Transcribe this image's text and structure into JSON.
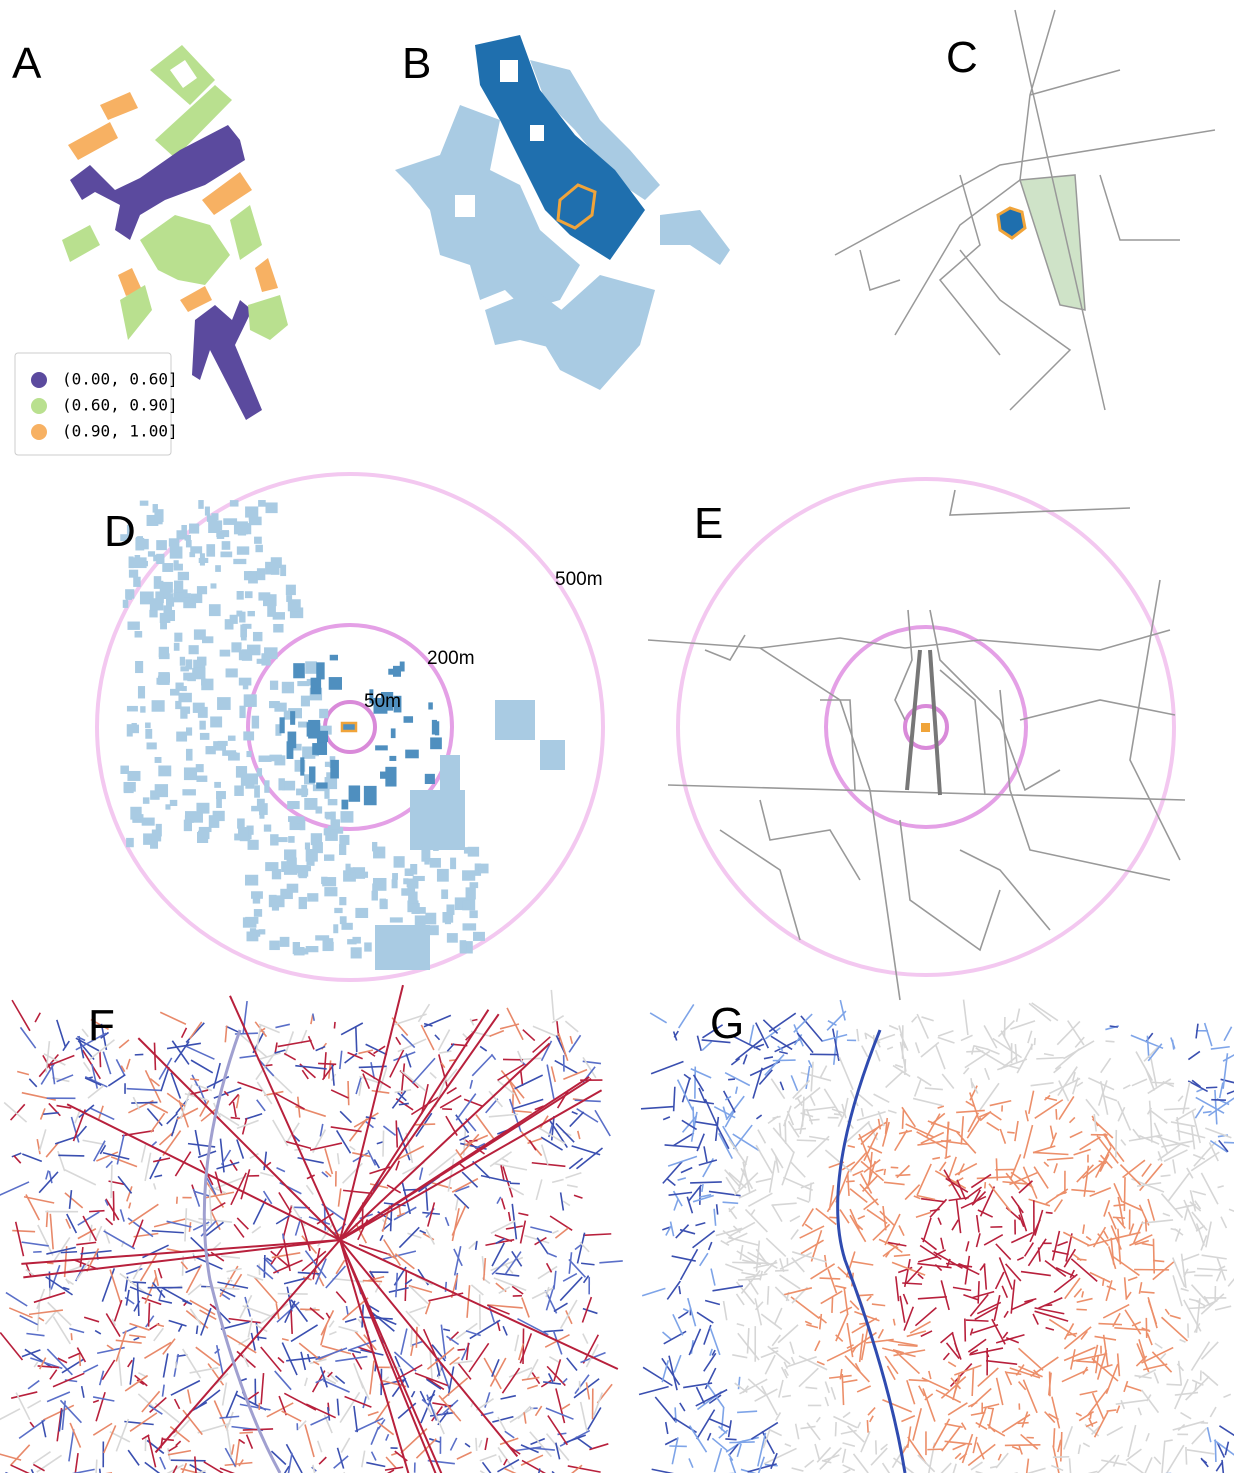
{
  "panels": [
    {
      "label": "A"
    },
    {
      "label": "B"
    },
    {
      "label": "C"
    },
    {
      "label": "D"
    },
    {
      "label": "E"
    },
    {
      "label": "F"
    },
    {
      "label": "G"
    }
  ],
  "legend": {
    "entries": [
      {
        "label": "(0.00, 0.60]",
        "color": "#5b4a9e"
      },
      {
        "label": "(0.60, 0.90]",
        "color": "#b9e08f"
      },
      {
        "label": "(0.90, 1.00]",
        "color": "#f7b163"
      }
    ]
  },
  "rings": {
    "labels": [
      "500m",
      "200m",
      "50m"
    ]
  }
}
